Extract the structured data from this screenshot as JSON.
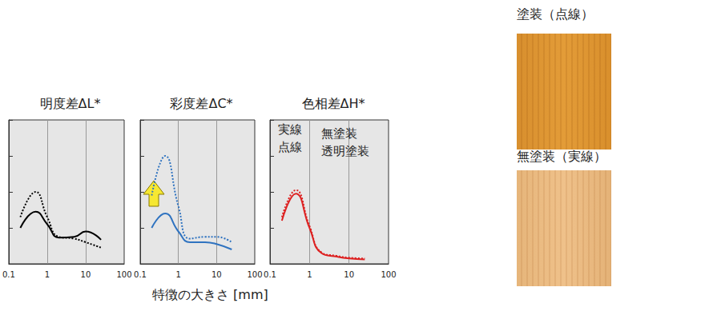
{
  "chart_data": [
    {
      "type": "line",
      "title": "明度差ΔL*",
      "color": "#000000",
      "x": [
        0.2,
        0.5,
        1,
        2,
        5,
        10,
        25
      ],
      "series": [
        {
          "name": "無塗装",
          "line_style": "solid",
          "values": [
            1.0,
            1.45,
            1.1,
            0.73,
            0.75,
            0.9,
            0.67
          ]
        },
        {
          "name": "透明塗装",
          "line_style": "dotted",
          "values": [
            1.3,
            2.0,
            1.3,
            0.75,
            0.7,
            0.6,
            0.45
          ]
        }
      ],
      "xlim": [
        0.1,
        100
      ],
      "xticks": [
        0.1,
        1,
        10,
        100
      ],
      "ylim": [
        0,
        4
      ],
      "yticks": [
        0,
        1,
        2,
        3,
        4
      ],
      "log": "x",
      "grid": true,
      "tick_labels": "x"
    },
    {
      "type": "line",
      "title": "彩度差ΔC*",
      "color": "#2f73c0",
      "x": [
        0.2,
        0.45,
        1,
        2,
        5,
        10,
        25
      ],
      "series": [
        {
          "name": "無塗装",
          "line_style": "solid",
          "values": [
            1.0,
            1.4,
            0.9,
            0.6,
            0.6,
            0.55,
            0.4
          ]
        },
        {
          "name": "透明塗装",
          "line_style": "dotted",
          "values": [
            1.9,
            3.0,
            1.6,
            0.7,
            0.75,
            0.75,
            0.6
          ]
        }
      ],
      "xlim": [
        0.1,
        100
      ],
      "xticks": [
        0.1,
        1,
        10,
        100
      ],
      "ylim": [
        0,
        4
      ],
      "yticks": [
        0,
        1,
        2,
        3,
        4
      ],
      "log": "x",
      "grid": true,
      "tick_labels": "x"
    },
    {
      "type": "line",
      "title": "色相差ΔH*",
      "color": "#dd2222",
      "x": [
        0.2,
        0.45,
        1,
        2,
        5,
        10,
        25
      ],
      "series": [
        {
          "name": "無塗装",
          "line_style": "solid",
          "values": [
            1.2,
            1.95,
            1.0,
            0.3,
            0.2,
            0.15,
            0.12
          ]
        },
        {
          "name": "透明塗装",
          "line_style": "dotted",
          "values": [
            1.3,
            2.05,
            1.05,
            0.32,
            0.22,
            0.17,
            0.15
          ]
        }
      ],
      "annotations": [
        "実線",
        "点線"
      ],
      "legend": "top",
      "xlim": [
        0.1,
        100
      ],
      "xticks": [
        0.1,
        1,
        10,
        100
      ],
      "ylim": [
        0,
        4
      ],
      "yticks": [
        0,
        1,
        2,
        3,
        4
      ],
      "log": "x",
      "grid": true,
      "tick_labels": "x"
    }
  ],
  "xlabel": "特徴の大きさ [mm]",
  "photos": [
    {
      "label": "塗装（点線）"
    },
    {
      "label": "無塗装（実線）"
    }
  ]
}
